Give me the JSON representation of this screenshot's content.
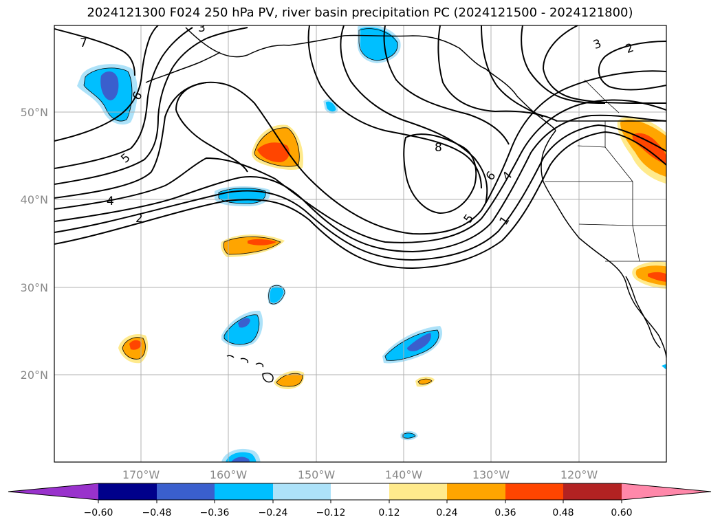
{
  "title": "2024121300 F024 250 hPa PV, river basin precipitation PC (2024121500 - 2024121800)",
  "lat_labels": [
    "50°N",
    "40°N",
    "30°N",
    "20°N"
  ],
  "lon_labels": [
    "170°W",
    "160°W",
    "150°W",
    "140°W",
    "130°W",
    "120°W"
  ],
  "contour_labels": [
    "7",
    "6",
    "5",
    "4",
    "2",
    "3",
    "3",
    "2",
    "8",
    "6",
    "4",
    "5",
    "1"
  ],
  "colorbar": {
    "ticks": [
      "−0.60",
      "−0.48",
      "−0.36",
      "−0.24",
      "−0.12",
      "0.12",
      "0.24",
      "0.36",
      "0.48",
      "0.60"
    ],
    "colors": [
      "#9932CC",
      "#00008B",
      "#3A5FCD",
      "#00BFFF",
      "#ADE2F9",
      "#FFFFFF",
      "#FFEA8C",
      "#FFA500",
      "#FF4500",
      "#B22222",
      "#FF88AA"
    ]
  },
  "palette": {
    "neg_light": "#ADE2F9",
    "neg_mid": "#00BFFF",
    "neg_strong": "#3A5FCD",
    "pos_light": "#FFEA8C",
    "pos_mid": "#FFA500",
    "pos_strong": "#FF4500"
  }
}
